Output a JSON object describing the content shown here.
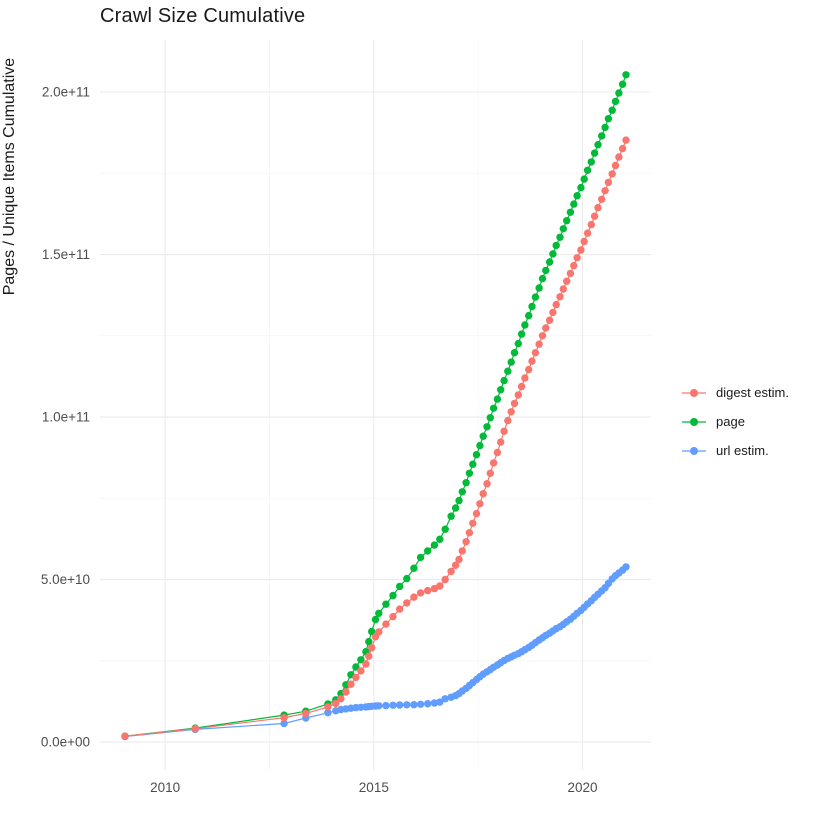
{
  "title": "Crawl Size Cumulative",
  "styles": {
    "background": "#FFFFFF",
    "grid_major": "#EBEBEB",
    "grid_minor": "#F5F5F5",
    "tick_text": "#4D4D4D",
    "title_color": "#1A1A1A"
  },
  "chart_data": {
    "type": "line",
    "markers": true,
    "title": "Crawl Size Cumulative",
    "xlabel": "",
    "ylabel": "Pages / Unique Items Cumulative",
    "legend_position": "right",
    "grid": true,
    "value_unit": "1e9 (point values listed in billions of pages/items)",
    "x_axis": {
      "range": [
        2008.44,
        2021.64
      ],
      "ticks": [
        {
          "v": 2010,
          "label": "2010"
        },
        {
          "v": 2015,
          "label": "2015"
        },
        {
          "v": 2020,
          "label": "2020"
        }
      ],
      "minor": [
        2012.5,
        2017.5
      ]
    },
    "y_axis": {
      "range": [
        -8.6,
        216
      ],
      "ticks": [
        {
          "v": 0,
          "label": "0.0e+00"
        },
        {
          "v": 50,
          "label": "5.0e+10"
        },
        {
          "v": 100,
          "label": "1.0e+11"
        },
        {
          "v": 150,
          "label": "1.5e+11"
        },
        {
          "v": 200,
          "label": "2.0e+11"
        }
      ],
      "minor": [
        25,
        75,
        125,
        175
      ]
    },
    "draw_order": [
      2,
      1,
      0
    ],
    "series": [
      {
        "name": "digest estim.",
        "color": "#F8766D",
        "points": [
          [
            2009.04,
            1.8
          ],
          [
            2010.72,
            4.1
          ],
          [
            2012.85,
            7.5
          ],
          [
            2013.37,
            8.8
          ],
          [
            2013.9,
            10.8
          ],
          [
            2014.09,
            11.9
          ],
          [
            2014.21,
            13.3
          ],
          [
            2014.33,
            15.4
          ],
          [
            2014.45,
            17.8
          ],
          [
            2014.57,
            19.9
          ],
          [
            2014.69,
            21.9
          ],
          [
            2014.81,
            24.0
          ],
          [
            2014.88,
            26.4
          ],
          [
            2014.95,
            29.0
          ],
          [
            2015.04,
            32.4
          ],
          [
            2015.12,
            33.9
          ],
          [
            2015.29,
            36.3
          ],
          [
            2015.46,
            38.6
          ],
          [
            2015.62,
            40.9
          ],
          [
            2015.79,
            42.8
          ],
          [
            2015.96,
            44.6
          ],
          [
            2016.12,
            45.9
          ],
          [
            2016.29,
            46.6
          ],
          [
            2016.45,
            47.2
          ],
          [
            2016.58,
            48.0
          ],
          [
            2016.71,
            50.0
          ],
          [
            2016.85,
            52.5
          ],
          [
            2016.96,
            54.4
          ],
          [
            2017.04,
            56.2
          ],
          [
            2017.12,
            58.8
          ],
          [
            2017.21,
            61.6
          ],
          [
            2017.29,
            64.4
          ],
          [
            2017.37,
            67.3
          ],
          [
            2017.46,
            70.3
          ],
          [
            2017.54,
            73.3
          ],
          [
            2017.62,
            76.4
          ],
          [
            2017.71,
            79.5
          ],
          [
            2017.79,
            82.7
          ],
          [
            2017.87,
            85.9
          ],
          [
            2017.96,
            89.1
          ],
          [
            2018.04,
            92.3
          ],
          [
            2018.12,
            95.6
          ],
          [
            2018.21,
            98.9
          ],
          [
            2018.29,
            101.6
          ],
          [
            2018.37,
            104.2
          ],
          [
            2018.46,
            106.8
          ],
          [
            2018.54,
            109.4
          ],
          [
            2018.62,
            112.0
          ],
          [
            2018.71,
            114.6
          ],
          [
            2018.79,
            117.2
          ],
          [
            2018.87,
            119.8
          ],
          [
            2018.96,
            122.4
          ],
          [
            2019.04,
            125.0
          ],
          [
            2019.12,
            127.4
          ],
          [
            2019.21,
            129.8
          ],
          [
            2019.29,
            132.2
          ],
          [
            2019.37,
            134.6
          ],
          [
            2019.46,
            137.0
          ],
          [
            2019.54,
            139.4
          ],
          [
            2019.62,
            141.8
          ],
          [
            2019.71,
            144.2
          ],
          [
            2019.79,
            146.6
          ],
          [
            2019.87,
            149.0
          ],
          [
            2019.96,
            151.4
          ],
          [
            2020.04,
            154.0
          ],
          [
            2020.12,
            156.6
          ],
          [
            2020.21,
            159.2
          ],
          [
            2020.29,
            161.8
          ],
          [
            2020.37,
            164.4
          ],
          [
            2020.46,
            167.0
          ],
          [
            2020.54,
            169.6
          ],
          [
            2020.62,
            172.2
          ],
          [
            2020.71,
            174.8
          ],
          [
            2020.79,
            177.4
          ],
          [
            2020.87,
            180.0
          ],
          [
            2020.96,
            182.6
          ],
          [
            2021.04,
            185.2
          ]
        ]
      },
      {
        "name": "page",
        "color": "#00BA38",
        "points": [
          [
            2009.04,
            1.8
          ],
          [
            2010.72,
            4.3
          ],
          [
            2012.85,
            8.3
          ],
          [
            2013.37,
            9.5
          ],
          [
            2013.9,
            11.7
          ],
          [
            2014.09,
            13.0
          ],
          [
            2014.21,
            14.9
          ],
          [
            2014.33,
            17.6
          ],
          [
            2014.45,
            20.7
          ],
          [
            2014.57,
            23.1
          ],
          [
            2014.69,
            25.3
          ],
          [
            2014.81,
            27.8
          ],
          [
            2014.88,
            30.9
          ],
          [
            2014.95,
            34.0
          ],
          [
            2015.04,
            37.7
          ],
          [
            2015.12,
            39.6
          ],
          [
            2015.29,
            42.4
          ],
          [
            2015.46,
            45.1
          ],
          [
            2015.62,
            47.9
          ],
          [
            2015.79,
            50.3
          ],
          [
            2015.96,
            53.5
          ],
          [
            2016.12,
            56.8
          ],
          [
            2016.29,
            58.8
          ],
          [
            2016.45,
            60.6
          ],
          [
            2016.58,
            62.4
          ],
          [
            2016.71,
            65.5
          ],
          [
            2016.85,
            69.5
          ],
          [
            2016.96,
            72.0
          ],
          [
            2017.04,
            74.3
          ],
          [
            2017.12,
            77.0
          ],
          [
            2017.21,
            79.8
          ],
          [
            2017.29,
            82.7
          ],
          [
            2017.37,
            85.5
          ],
          [
            2017.46,
            88.4
          ],
          [
            2017.54,
            91.2
          ],
          [
            2017.62,
            94.1
          ],
          [
            2017.71,
            97.0
          ],
          [
            2017.79,
            99.8
          ],
          [
            2017.87,
            102.7
          ],
          [
            2017.96,
            105.5
          ],
          [
            2018.04,
            108.4
          ],
          [
            2018.12,
            111.2
          ],
          [
            2018.21,
            114.1
          ],
          [
            2018.29,
            116.9
          ],
          [
            2018.37,
            119.8
          ],
          [
            2018.46,
            122.6
          ],
          [
            2018.54,
            125.5
          ],
          [
            2018.62,
            128.3
          ],
          [
            2018.71,
            131.2
          ],
          [
            2018.79,
            134.0
          ],
          [
            2018.87,
            136.9
          ],
          [
            2018.96,
            139.7
          ],
          [
            2019.04,
            142.6
          ],
          [
            2019.12,
            145.1
          ],
          [
            2019.21,
            147.7
          ],
          [
            2019.29,
            150.2
          ],
          [
            2019.37,
            152.8
          ],
          [
            2019.46,
            155.3
          ],
          [
            2019.54,
            157.9
          ],
          [
            2019.62,
            160.4
          ],
          [
            2019.71,
            163.0
          ],
          [
            2019.79,
            165.5
          ],
          [
            2019.87,
            168.1
          ],
          [
            2019.96,
            170.6
          ],
          [
            2020.04,
            173.2
          ],
          [
            2020.12,
            175.9
          ],
          [
            2020.21,
            178.5
          ],
          [
            2020.29,
            181.2
          ],
          [
            2020.37,
            183.8
          ],
          [
            2020.46,
            186.5
          ],
          [
            2020.54,
            189.1
          ],
          [
            2020.62,
            191.8
          ],
          [
            2020.71,
            194.4
          ],
          [
            2020.79,
            197.1
          ],
          [
            2020.87,
            199.7
          ],
          [
            2020.96,
            202.4
          ],
          [
            2021.04,
            205.3
          ]
        ]
      },
      {
        "name": "url estim.",
        "color": "#619CFF",
        "points": [
          [
            2009.04,
            1.7
          ],
          [
            2010.72,
            3.9
          ],
          [
            2012.85,
            5.7
          ],
          [
            2013.37,
            7.4
          ],
          [
            2013.9,
            9.0
          ],
          [
            2014.09,
            9.6
          ],
          [
            2014.21,
            10.0
          ],
          [
            2014.33,
            10.2
          ],
          [
            2014.45,
            10.4
          ],
          [
            2014.57,
            10.6
          ],
          [
            2014.69,
            10.7
          ],
          [
            2014.81,
            10.8
          ],
          [
            2014.88,
            10.9
          ],
          [
            2014.95,
            11.0
          ],
          [
            2015.04,
            11.1
          ],
          [
            2015.12,
            11.15
          ],
          [
            2015.29,
            11.2
          ],
          [
            2015.46,
            11.3
          ],
          [
            2015.62,
            11.4
          ],
          [
            2015.79,
            11.45
          ],
          [
            2015.96,
            11.5
          ],
          [
            2016.12,
            11.6
          ],
          [
            2016.29,
            11.8
          ],
          [
            2016.45,
            12.0
          ],
          [
            2016.58,
            12.3
          ],
          [
            2016.71,
            13.3
          ],
          [
            2016.85,
            13.8
          ],
          [
            2016.96,
            14.3
          ],
          [
            2017.04,
            14.9
          ],
          [
            2017.12,
            15.7
          ],
          [
            2017.21,
            16.5
          ],
          [
            2017.29,
            17.4
          ],
          [
            2017.37,
            18.3
          ],
          [
            2017.46,
            19.2
          ],
          [
            2017.54,
            20.1
          ],
          [
            2017.62,
            20.9
          ],
          [
            2017.71,
            21.6
          ],
          [
            2017.79,
            22.3
          ],
          [
            2017.87,
            23.0
          ],
          [
            2017.96,
            23.7
          ],
          [
            2018.04,
            24.4
          ],
          [
            2018.12,
            25.1
          ],
          [
            2018.21,
            25.7
          ],
          [
            2018.29,
            26.2
          ],
          [
            2018.37,
            26.7
          ],
          [
            2018.46,
            27.2
          ],
          [
            2018.54,
            27.8
          ],
          [
            2018.62,
            28.4
          ],
          [
            2018.71,
            29.1
          ],
          [
            2018.79,
            29.8
          ],
          [
            2018.87,
            30.6
          ],
          [
            2018.96,
            31.4
          ],
          [
            2019.04,
            32.1
          ],
          [
            2019.12,
            32.8
          ],
          [
            2019.21,
            33.5
          ],
          [
            2019.29,
            34.2
          ],
          [
            2019.37,
            34.9
          ],
          [
            2019.46,
            35.5
          ],
          [
            2019.54,
            36.2
          ],
          [
            2019.62,
            37.0
          ],
          [
            2019.71,
            37.8
          ],
          [
            2019.79,
            38.7
          ],
          [
            2019.87,
            39.6
          ],
          [
            2019.96,
            40.5
          ],
          [
            2020.04,
            41.5
          ],
          [
            2020.12,
            42.5
          ],
          [
            2020.21,
            43.5
          ],
          [
            2020.29,
            44.5
          ],
          [
            2020.37,
            45.5
          ],
          [
            2020.46,
            46.5
          ],
          [
            2020.54,
            47.5
          ],
          [
            2020.62,
            48.8
          ],
          [
            2020.71,
            50.2
          ],
          [
            2020.79,
            51.2
          ],
          [
            2020.87,
            52.0
          ],
          [
            2020.96,
            52.9
          ],
          [
            2021.04,
            53.9
          ]
        ]
      }
    ]
  }
}
